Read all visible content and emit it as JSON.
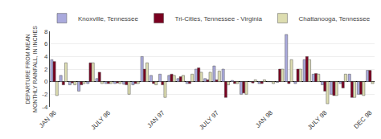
{
  "chart_data": {
    "type": "bar",
    "ylabel": "DEPARTURE FROM MEAN\nMONTHLY RAINFALL, IN INCHES",
    "categories": [
      "JAN 96",
      null,
      null,
      null,
      null,
      null,
      "JULY 96",
      null,
      null,
      null,
      null,
      null,
      "JAN 97",
      null,
      null,
      null,
      null,
      null,
      "JULY 97",
      null,
      null,
      null,
      null,
      null,
      "JAN 98",
      null,
      null,
      null,
      null,
      null,
      "JULY 98",
      null,
      null,
      null,
      null,
      "DEC 98"
    ],
    "series": [
      {
        "name": "Knoxville, Tennessee",
        "color": "#aaaadd",
        "values": [
          3.5,
          1.0,
          -0.5,
          -1.5,
          -0.3,
          0.5,
          -0.3,
          -0.3,
          -0.4,
          -0.5,
          4.0,
          1.0,
          1.2,
          1.0,
          0.5,
          -0.3,
          2.0,
          0.5,
          2.5,
          2.0,
          0.2,
          -2.0,
          0.0,
          -0.3,
          0.0,
          -0.1,
          7.5,
          -0.3,
          3.5,
          1.2,
          -0.5,
          -2.0,
          -0.3,
          1.2,
          -2.0,
          1.8
        ]
      },
      {
        "name": "Tri-Cities, Tennessee - Virginia",
        "color": "#7a0020",
        "values": [
          3.2,
          -0.5,
          -0.2,
          -0.5,
          3.0,
          1.5,
          -0.3,
          -0.2,
          -0.5,
          -0.3,
          2.0,
          -0.3,
          -0.5,
          1.2,
          0.8,
          -0.3,
          2.2,
          0.3,
          0.3,
          -2.5,
          -0.3,
          -1.8,
          -0.2,
          -0.3,
          0.0,
          2.0,
          -0.3,
          2.0,
          4.0,
          1.3,
          -1.5,
          -2.2,
          -1.0,
          -2.5,
          -2.0,
          1.8
        ]
      },
      {
        "name": "Chattanooga, Tennessee",
        "color": "#ddddb0",
        "values": [
          -2.2,
          3.0,
          -0.5,
          -0.3,
          3.0,
          -0.3,
          -0.3,
          -0.3,
          -2.0,
          -0.3,
          3.0,
          -0.5,
          -2.5,
          1.0,
          1.0,
          1.2,
          1.5,
          1.5,
          1.7,
          -0.5,
          -0.3,
          -2.0,
          0.3,
          0.3,
          -0.3,
          2.0,
          3.5,
          2.0,
          3.5,
          1.2,
          -3.5,
          -2.2,
          1.2,
          -2.5,
          -2.2,
          -0.3
        ]
      }
    ],
    "ylim": [
      -4,
      8
    ],
    "yticks": [
      -4,
      -2,
      0,
      2,
      4,
      6,
      8
    ],
    "grid": true,
    "legend": "upper right"
  }
}
